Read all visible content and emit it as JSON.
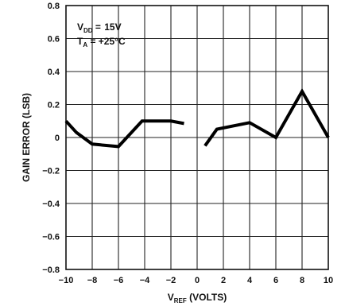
{
  "chart_data": {
    "type": "line",
    "xlabel": {
      "main": "V",
      "sub": "REF",
      "rest": " (VOLTS)"
    },
    "ylabel": "GAIN ERROR (LSB)",
    "xlim": [
      -10,
      10
    ],
    "ylim": [
      -0.8,
      0.8
    ],
    "x_ticks": [
      -10,
      -8,
      -6,
      -4,
      -2,
      0,
      2,
      4,
      6,
      8,
      10
    ],
    "x_tick_labels": [
      "−10",
      "−8",
      "−6",
      "−4",
      "−2",
      "0",
      "2",
      "4",
      "6",
      "8",
      "10"
    ],
    "y_ticks": [
      0.8,
      0.6,
      0.4,
      0.2,
      0,
      -0.2,
      -0.4,
      -0.6,
      -0.8
    ],
    "y_tick_labels": [
      "0.8",
      "0.6",
      "0.4",
      "0.2",
      "0",
      "−0.2",
      "−0.4",
      "−0.6",
      "−0.8"
    ],
    "grid": true,
    "annotations": [
      {
        "main": "V",
        "sub": "DD",
        "rest": " =  15V"
      },
      {
        "main": "T",
        "sub": "A",
        "rest": " = +25°C"
      }
    ],
    "series": [
      {
        "x": [
          -10,
          -9.2,
          -8,
          -6,
          -4.2,
          -2,
          -1
        ],
        "y": [
          0.1,
          0.03,
          -0.04,
          -0.055,
          0.1,
          0.1,
          0.085
        ]
      },
      {
        "x": [
          0.6,
          1.5,
          4,
          6,
          8,
          10
        ],
        "y": [
          -0.05,
          0.05,
          0.09,
          0.0,
          0.28,
          0.0
        ]
      }
    ]
  }
}
